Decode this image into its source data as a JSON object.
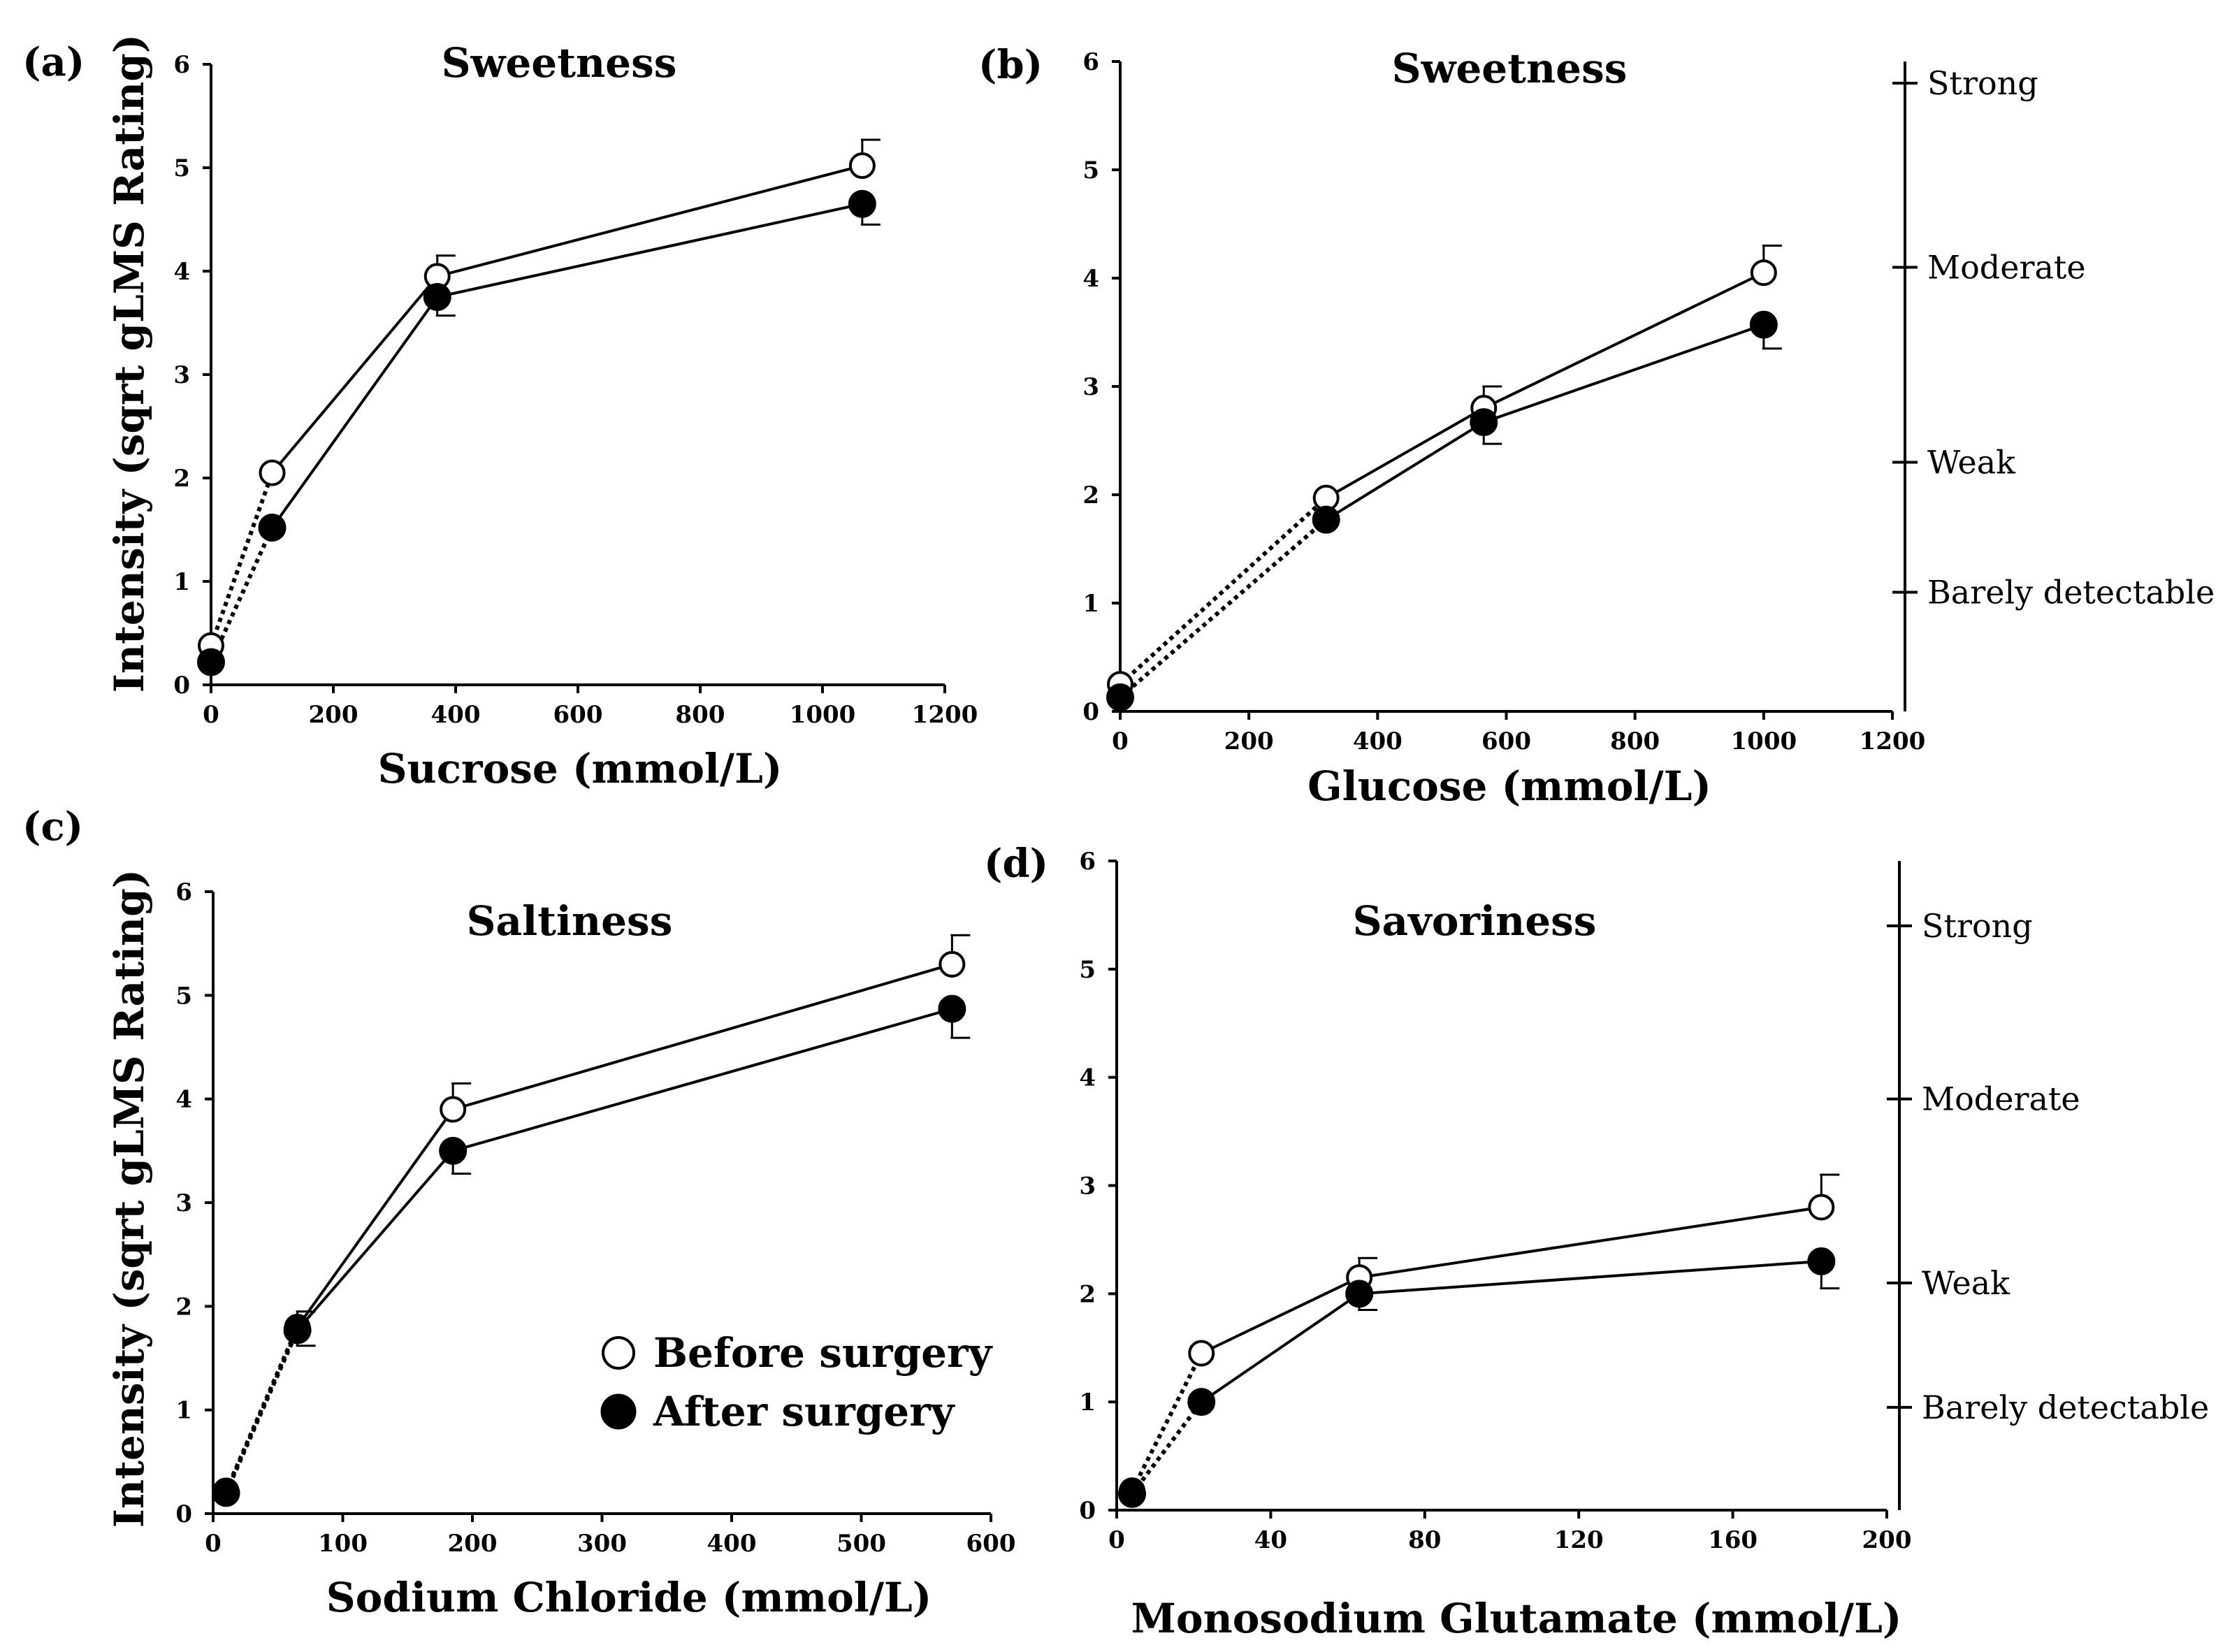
{
  "legend": {
    "before_label": "Before surgery",
    "after_label": "After surgery"
  },
  "chart_data": [
    {
      "panel": "(a)",
      "type": "line",
      "title": "Sweetness",
      "xlabel": "Sucrose (mmol/L)",
      "ylabel": "Intensity (sqrt gLMS Rating)",
      "xlim": [
        0,
        1200
      ],
      "ylim": [
        0,
        6
      ],
      "xticks": [
        0,
        200,
        400,
        600,
        800,
        1000,
        1200
      ],
      "yticks": [
        0,
        1,
        2,
        3,
        4,
        5,
        6
      ],
      "series": [
        {
          "name": "Before surgery",
          "marker": "open-circle",
          "x": [
            0,
            100,
            370,
            1065
          ],
          "y": [
            0.38,
            2.05,
            3.95,
            5.02
          ],
          "err": [
            0,
            0,
            0.2,
            0.25
          ],
          "dotted_segments": [
            0
          ]
        },
        {
          "name": "After surgery",
          "marker": "filled-circle",
          "x": [
            0,
            100,
            370,
            1065
          ],
          "y": [
            0.22,
            1.52,
            3.75,
            4.65
          ],
          "err": [
            0,
            0,
            0.18,
            0.2
          ],
          "dotted_segments": [
            0
          ]
        }
      ],
      "scale_labels": []
    },
    {
      "panel": "(b)",
      "type": "line",
      "title": "Sweetness",
      "xlabel": "Glucose (mmol/L)",
      "ylabel": "",
      "xlim": [
        0,
        1200
      ],
      "ylim": [
        0,
        6
      ],
      "xticks": [
        0,
        200,
        400,
        600,
        800,
        1000,
        1200
      ],
      "yticks": [
        0,
        1,
        2,
        3,
        4,
        5,
        6
      ],
      "series": [
        {
          "name": "Before surgery",
          "marker": "open-circle",
          "x": [
            0,
            320,
            565,
            1000
          ],
          "y": [
            0.25,
            1.97,
            2.8,
            4.05
          ],
          "err": [
            0,
            0,
            0.2,
            0.25
          ],
          "dotted_segments": [
            0
          ]
        },
        {
          "name": "After surgery",
          "marker": "filled-circle",
          "x": [
            0,
            320,
            565,
            1000
          ],
          "y": [
            0.13,
            1.77,
            2.67,
            3.57
          ],
          "err": [
            0,
            0,
            0.2,
            0.22
          ],
          "dotted_segments": [
            0
          ]
        }
      ],
      "scale_labels": [
        {
          "label": "Strong",
          "value": 5.8
        },
        {
          "label": "Moderate",
          "value": 4.1
        },
        {
          "label": "Weak",
          "value": 2.3
        },
        {
          "label": "Barely detectable",
          "value": 1.1
        }
      ]
    },
    {
      "panel": "(c)",
      "type": "line",
      "title": "Saltiness",
      "xlabel": "Sodium Chloride (mmol/L)",
      "ylabel": "Intensity (sqrt gLMS Rating)",
      "xlim": [
        0,
        600
      ],
      "ylim": [
        0,
        6
      ],
      "xticks": [
        0,
        100,
        200,
        300,
        400,
        500,
        600
      ],
      "yticks": [
        0,
        1,
        2,
        3,
        4,
        5,
        6
      ],
      "series": [
        {
          "name": "Before surgery",
          "marker": "open-circle",
          "x": [
            10,
            65,
            185,
            570
          ],
          "y": [
            0.22,
            1.8,
            3.9,
            5.3
          ],
          "err": [
            0,
            0.15,
            0.25,
            0.28
          ],
          "dotted_segments": [
            0
          ]
        },
        {
          "name": "After surgery",
          "marker": "filled-circle",
          "x": [
            10,
            65,
            185,
            570
          ],
          "y": [
            0.2,
            1.77,
            3.5,
            4.87
          ],
          "err": [
            0,
            0.15,
            0.22,
            0.28
          ],
          "dotted_segments": [
            0
          ]
        }
      ],
      "scale_labels": []
    },
    {
      "panel": "(d)",
      "type": "line",
      "title": "Savoriness",
      "xlabel": "Monosodium Glutamate (mmol/L)",
      "ylabel": "",
      "xlim": [
        0,
        200
      ],
      "ylim": [
        0,
        6
      ],
      "xticks": [
        0,
        40,
        80,
        120,
        160,
        200
      ],
      "yticks": [
        0,
        1,
        2,
        3,
        4,
        5,
        6
      ],
      "series": [
        {
          "name": "Before surgery",
          "marker": "open-circle",
          "x": [
            4,
            22,
            63,
            183
          ],
          "y": [
            0.18,
            1.45,
            2.15,
            2.8
          ],
          "err": [
            0,
            0,
            0.18,
            0.3
          ],
          "dotted_segments": [
            0
          ]
        },
        {
          "name": "After surgery",
          "marker": "filled-circle",
          "x": [
            4,
            22,
            63,
            183
          ],
          "y": [
            0.15,
            1.0,
            2.0,
            2.3
          ],
          "err": [
            0,
            0,
            0.15,
            0.25
          ],
          "dotted_segments": [
            0
          ]
        }
      ],
      "scale_labels": [
        {
          "label": "Strong",
          "value": 5.4
        },
        {
          "label": "Moderate",
          "value": 3.8
        },
        {
          "label": "Weak",
          "value": 2.1
        },
        {
          "label": "Barely detectable",
          "value": 0.95
        }
      ]
    }
  ]
}
